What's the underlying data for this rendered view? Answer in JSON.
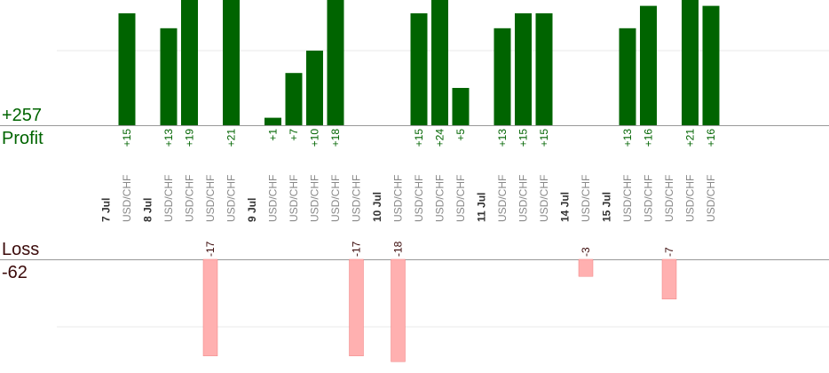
{
  "colors": {
    "profit_bar": "#006400",
    "profit_text": "#006400",
    "loss_bar": "#ffb0b0",
    "loss_text": "#3b0a0a",
    "gridline": "#e8e8e8",
    "baseline": "#999999",
    "tick_text": "#888888",
    "date_text": "#333333"
  },
  "summary": {
    "profit_total": "+257",
    "profit_label": "Profit",
    "loss_label": "Loss",
    "loss_total": "-62"
  },
  "chart_data": {
    "type": "bar",
    "slots": [
      {
        "kind": "date",
        "label": "7 Jul"
      },
      {
        "kind": "trade",
        "label": "USD/CHF",
        "value": 15,
        "value_label": "+15"
      },
      {
        "kind": "date",
        "label": "8 Jul"
      },
      {
        "kind": "trade",
        "label": "USD/CHF",
        "value": 13,
        "value_label": "+13"
      },
      {
        "kind": "trade",
        "label": "USD/CHF",
        "value": 19,
        "value_label": "+19"
      },
      {
        "kind": "trade",
        "label": "USD/CHF",
        "value": -17,
        "value_label": "-17"
      },
      {
        "kind": "trade",
        "label": "USD/CHF",
        "value": 21,
        "value_label": "+21"
      },
      {
        "kind": "date",
        "label": "9 Jul"
      },
      {
        "kind": "trade",
        "label": "USD/CHF",
        "value": 1,
        "value_label": "+1"
      },
      {
        "kind": "trade",
        "label": "USD/CHF",
        "value": 7,
        "value_label": "+7"
      },
      {
        "kind": "trade",
        "label": "USD/CHF",
        "value": 10,
        "value_label": "+10"
      },
      {
        "kind": "trade",
        "label": "USD/CHF",
        "value": 18,
        "value_label": "+18"
      },
      {
        "kind": "trade",
        "label": "USD/CHF",
        "value": -17,
        "value_label": "-17"
      },
      {
        "kind": "date",
        "label": "10 Jul"
      },
      {
        "kind": "trade",
        "label": "USD/CHF",
        "value": -18,
        "value_label": "-18"
      },
      {
        "kind": "trade",
        "label": "USD/CHF",
        "value": 15,
        "value_label": "+15"
      },
      {
        "kind": "trade",
        "label": "USD/CHF",
        "value": 24,
        "value_label": "+24"
      },
      {
        "kind": "trade",
        "label": "USD/CHF",
        "value": 5,
        "value_label": "+5"
      },
      {
        "kind": "date",
        "label": "11 Jul"
      },
      {
        "kind": "trade",
        "label": "USD/CHF",
        "value": 13,
        "value_label": "+13"
      },
      {
        "kind": "trade",
        "label": "USD/CHF",
        "value": 15,
        "value_label": "+15"
      },
      {
        "kind": "trade",
        "label": "USD/CHF",
        "value": 15,
        "value_label": "+15"
      },
      {
        "kind": "date",
        "label": "14 Jul"
      },
      {
        "kind": "trade",
        "label": "USD/CHF",
        "value": -3,
        "value_label": "-3"
      },
      {
        "kind": "date",
        "label": "15 Jul"
      },
      {
        "kind": "trade",
        "label": "USD/CHF",
        "value": 13,
        "value_label": "+13"
      },
      {
        "kind": "trade",
        "label": "USD/CHF",
        "value": 16,
        "value_label": "+16"
      },
      {
        "kind": "trade",
        "label": "USD/CHF",
        "value": -7,
        "value_label": "-7"
      },
      {
        "kind": "trade",
        "label": "USD/CHF",
        "value": 21,
        "value_label": "+21"
      },
      {
        "kind": "trade",
        "label": "USD/CHF",
        "value": 16,
        "value_label": "+16"
      }
    ]
  }
}
